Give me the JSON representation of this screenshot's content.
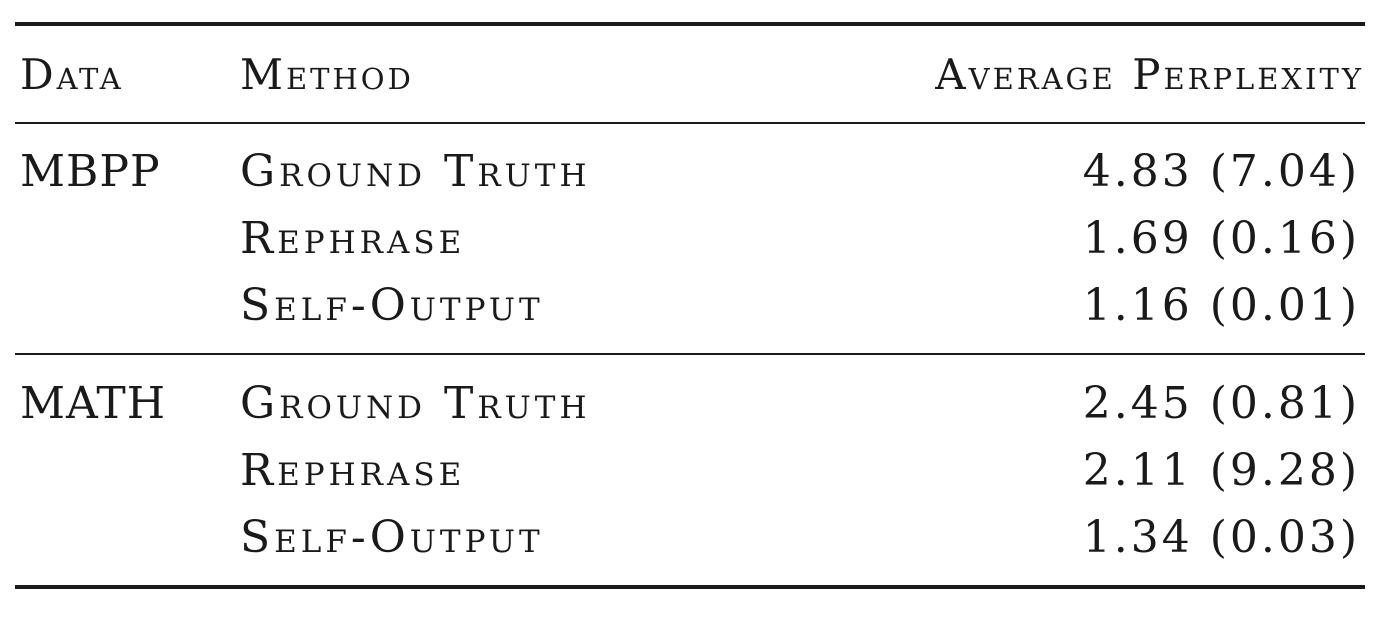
{
  "table": {
    "headers": {
      "data": "Data",
      "method": "Method",
      "average_perplexity": "Average Perplexity"
    },
    "groups": [
      {
        "data": "MBPP",
        "rows": [
          {
            "method": "Ground Truth",
            "value": "4.83 (7.04)"
          },
          {
            "method": "Rephrase",
            "value": "1.69 (0.16)"
          },
          {
            "method": "Self-Output",
            "value": "1.16 (0.01)"
          }
        ]
      },
      {
        "data": "MATH",
        "rows": [
          {
            "method": "Ground Truth",
            "value": "2.45 (0.81)"
          },
          {
            "method": "Rephrase",
            "value": "2.11 (9.28)"
          },
          {
            "method": "Self-Output",
            "value": "1.34 (0.03)"
          }
        ]
      }
    ]
  }
}
